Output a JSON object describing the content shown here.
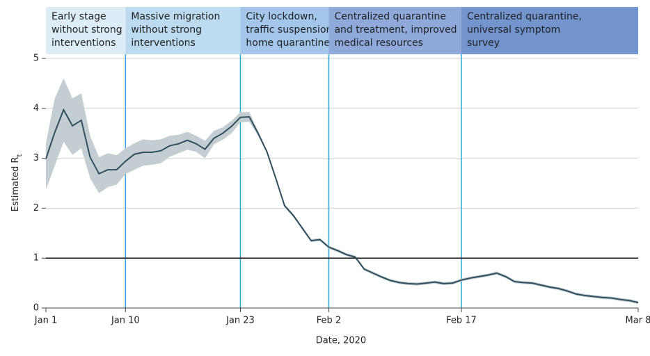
{
  "chart_data": {
    "type": "line",
    "xlabel": "Date, 2020",
    "ylabel": "Estimated R",
    "ylabel_sub": "t",
    "xlim": [
      0,
      67
    ],
    "ylim": [
      0,
      5
    ],
    "xticks": [
      {
        "value": 0,
        "label": "Jan 1"
      },
      {
        "value": 9,
        "label": "Jan 10"
      },
      {
        "value": 22,
        "label": "Jan 23"
      },
      {
        "value": 32,
        "label": "Feb 2"
      },
      {
        "value": 47,
        "label": "Feb 17"
      },
      {
        "value": 67,
        "label": "Mar 8"
      }
    ],
    "yticks": [
      0,
      1,
      2,
      3,
      4,
      5
    ],
    "grid": true,
    "hline": 1,
    "x": [
      0,
      1,
      2,
      3,
      4,
      5,
      6,
      7,
      8,
      9,
      10,
      11,
      12,
      13,
      14,
      15,
      16,
      17,
      18,
      19,
      20,
      21,
      22,
      23,
      24,
      25,
      26,
      27,
      28,
      29,
      30,
      31,
      32,
      33,
      34,
      35,
      36,
      37,
      38,
      39,
      40,
      41,
      42,
      43,
      44,
      45,
      46,
      47,
      48,
      49,
      50,
      51,
      52,
      53,
      54,
      55,
      56,
      57,
      58,
      59,
      60,
      61,
      62,
      63,
      64,
      65,
      66,
      67
    ],
    "series": [
      {
        "color": "#2f4f5f",
        "values": [
          2.99,
          3.52,
          3.97,
          3.65,
          3.76,
          3.02,
          2.69,
          2.77,
          2.77,
          2.94,
          3.08,
          3.12,
          3.12,
          3.15,
          3.25,
          3.29,
          3.36,
          3.29,
          3.18,
          3.4,
          3.5,
          3.64,
          3.82,
          3.83,
          3.5,
          3.13,
          2.6,
          2.05,
          1.85,
          1.6,
          1.35,
          1.37,
          1.22,
          1.15,
          1.07,
          1.02,
          0.78,
          0.7,
          0.62,
          0.55,
          0.51,
          0.49,
          0.48,
          0.5,
          0.52,
          0.49,
          0.5,
          0.56,
          0.6,
          0.63,
          0.66,
          0.7,
          0.63,
          0.53,
          0.51,
          0.5,
          0.46,
          0.42,
          0.39,
          0.34,
          0.28,
          0.25,
          0.23,
          0.21,
          0.2,
          0.17,
          0.15,
          0.11
        ]
      }
    ],
    "band": {
      "color": "#c4cdd2",
      "upper": [
        3.3,
        4.2,
        4.6,
        4.2,
        4.3,
        3.45,
        3.02,
        3.1,
        3.06,
        3.2,
        3.3,
        3.38,
        3.36,
        3.38,
        3.45,
        3.47,
        3.53,
        3.45,
        3.35,
        3.55,
        3.62,
        3.75,
        3.92,
        3.93,
        3.55,
        3.15,
        2.63,
        2.08,
        1.88,
        1.63,
        1.38,
        1.4,
        1.25,
        1.18,
        1.1,
        1.05,
        0.81,
        0.73,
        0.65,
        0.58,
        0.54,
        0.52,
        0.51,
        0.53,
        0.55,
        0.52,
        0.53,
        0.59,
        0.63,
        0.66,
        0.69,
        0.73,
        0.66,
        0.56,
        0.54,
        0.53,
        0.49,
        0.45,
        0.42,
        0.37,
        0.31,
        0.28,
        0.26,
        0.24,
        0.23,
        0.2,
        0.18,
        0.14
      ],
      "lower": [
        2.37,
        2.85,
        3.33,
        3.07,
        3.2,
        2.6,
        2.3,
        2.42,
        2.47,
        2.68,
        2.77,
        2.85,
        2.87,
        2.9,
        3.03,
        3.1,
        3.17,
        3.13,
        3.0,
        3.28,
        3.37,
        3.5,
        3.72,
        3.73,
        3.45,
        3.1,
        2.57,
        2.02,
        1.82,
        1.57,
        1.32,
        1.34,
        1.19,
        1.12,
        1.04,
        0.99,
        0.75,
        0.67,
        0.59,
        0.52,
        0.48,
        0.46,
        0.45,
        0.47,
        0.49,
        0.46,
        0.47,
        0.53,
        0.57,
        0.6,
        0.63,
        0.67,
        0.6,
        0.5,
        0.48,
        0.47,
        0.43,
        0.39,
        0.36,
        0.31,
        0.25,
        0.22,
        0.2,
        0.18,
        0.17,
        0.14,
        0.12,
        0.08
      ]
    },
    "phases": [
      {
        "start": 0,
        "end": 9,
        "color": "#dcedf8",
        "text": [
          "Early stage",
          "without strong",
          "interventions"
        ]
      },
      {
        "start": 9,
        "end": 22,
        "color": "#bcdaf0",
        "text": [
          "Massive migration",
          "without strong",
          "interventions"
        ]
      },
      {
        "start": 22,
        "end": 32,
        "color": "#a3c6ea",
        "text": [
          "City lockdown,",
          "traffic suspension,",
          "home quarantine"
        ]
      },
      {
        "start": 32,
        "end": 47,
        "color": "#8fa9da",
        "text": [
          "Centralized quarantine",
          "and treatment, improved",
          "medical resources"
        ]
      },
      {
        "start": 47,
        "end": 67,
        "color": "#7394cc",
        "text": [
          "Centralized quarantine,",
          "universal symptom",
          "survey"
        ]
      }
    ],
    "phase_line_color": "#2aa7d8"
  }
}
